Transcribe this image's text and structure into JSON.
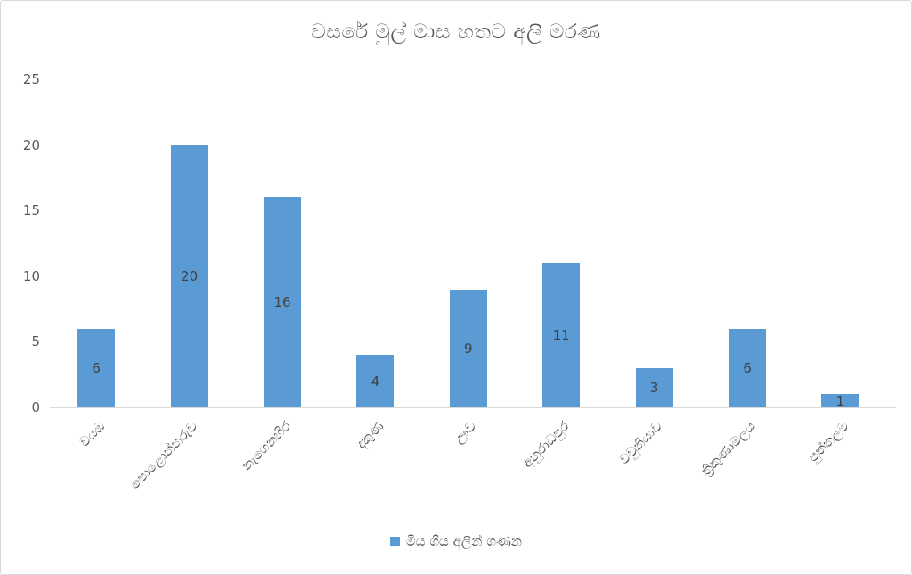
{
  "chart_data": {
    "type": "bar",
    "title": "වසරේ මුල් මාස හතට අලි මරණ",
    "categories": [
      "වයඹ",
      "පොළොන්නරුව",
      "නැගෙනහිර",
      "දකුණ",
      "ඌව",
      "අනුරාධපුර",
      "වවුනියාව",
      "ත්‍රිකුණාමලය",
      "පුත්තලම"
    ],
    "values": [
      6,
      20,
      16,
      4,
      9,
      11,
      3,
      6,
      1
    ],
    "series": [
      {
        "name": "මිය ගිය අලින් ගණන",
        "values": [
          6,
          20,
          16,
          4,
          9,
          11,
          3,
          6,
          1
        ]
      }
    ],
    "series_name": "මිය ගිය අලින් ගණන",
    "xlabel": "",
    "ylabel": "",
    "ylim": [
      0,
      25
    ],
    "yticks": [
      0,
      5,
      10,
      15,
      20,
      25
    ],
    "grid": false,
    "data_labels": true,
    "legend_position": "bottom",
    "colors": {
      "bar": "#5B9BD5",
      "title_text": "#595959",
      "axis_text": "#595959",
      "data_label_text": "#404040",
      "axis_line": "#D9D9D9",
      "frame_border": "#D9D9D9",
      "background": "#FFFFFF"
    }
  }
}
